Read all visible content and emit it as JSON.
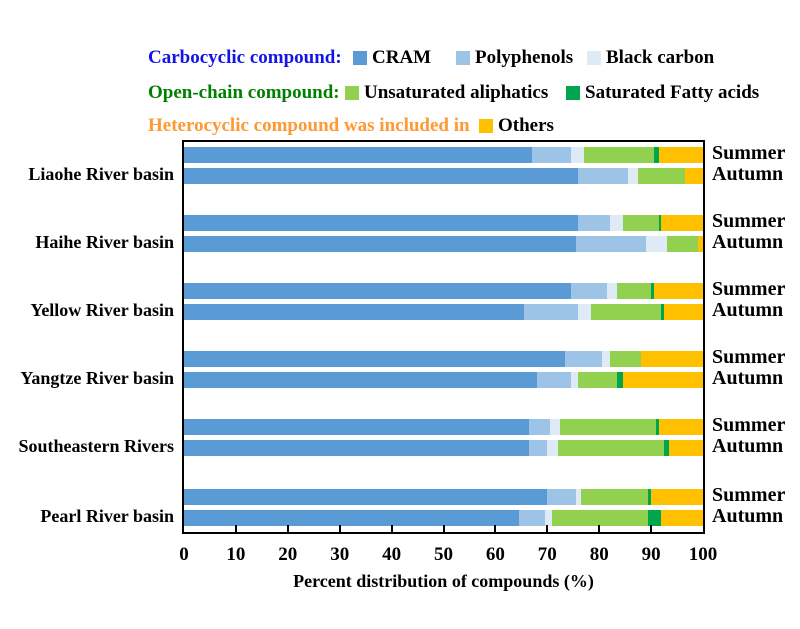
{
  "legend": {
    "rows": [
      {
        "label": "Carbocyclic compound:",
        "color": "#1414E6",
        "items": [
          {
            "name": "CRAM",
            "color": "#5B9BD5"
          },
          {
            "name": "Polyphenols",
            "color": "#9DC3E6"
          },
          {
            "name": "Black carbon",
            "color": "#DEEBF7"
          }
        ]
      },
      {
        "label": "Open-chain compound:",
        "color": "#008000",
        "items": [
          {
            "name": "Unsaturated aliphatics",
            "color": "#92D050"
          },
          {
            "name": "Saturated Fatty acids",
            "color": "#00A550"
          }
        ]
      },
      {
        "label": "Heterocyclic compound was included in",
        "color": "#FF9933",
        "items": [
          {
            "name": "Others",
            "color": "#FFC000"
          }
        ]
      }
    ]
  },
  "chart_data": {
    "type": "bar",
    "orientation": "horizontal",
    "stacked": true,
    "title": "",
    "xlabel": "Percent distribution of compounds (%)",
    "xlim": [
      0,
      100
    ],
    "xticks": [
      0,
      10,
      20,
      30,
      40,
      50,
      60,
      70,
      80,
      90,
      100
    ],
    "grid": false,
    "series_names": [
      "CRAM",
      "Polyphenols",
      "Black carbon",
      "Unsaturated aliphatics",
      "Saturated Fatty acids",
      "Others"
    ],
    "series_colors": [
      "#5B9BD5",
      "#9DC3E6",
      "#DEEBF7",
      "#92D050",
      "#00A550",
      "#FFC000"
    ],
    "groups": [
      {
        "category": "Liaohe River basin",
        "bars": [
          {
            "season": "Summer",
            "values": [
              67,
              7.5,
              2.5,
              13.5,
              1,
              8.5
            ]
          },
          {
            "season": "Autumn",
            "values": [
              76,
              9.5,
              2,
              9,
              0,
              3.5
            ]
          }
        ]
      },
      {
        "category": "Haihe River basin",
        "bars": [
          {
            "season": "Summer",
            "values": [
              76,
              6,
              2.5,
              7,
              0.5,
              8
            ]
          },
          {
            "season": "Autumn",
            "values": [
              75.5,
              13.5,
              4,
              6,
              0,
              1
            ]
          }
        ]
      },
      {
        "category": "Yellow River basin",
        "bars": [
          {
            "season": "Summer",
            "values": [
              74.5,
              7,
              2,
              6.5,
              0.5,
              9.5
            ]
          },
          {
            "season": "Autumn",
            "values": [
              65.5,
              10.5,
              2.5,
              13.5,
              0.5,
              7.5
            ]
          }
        ]
      },
      {
        "category": "Yangtze River basin",
        "bars": [
          {
            "season": "Summer",
            "values": [
              73.5,
              7,
              1.5,
              6,
              0,
              12
            ]
          },
          {
            "season": "Autumn",
            "values": [
              68,
              6.5,
              1.5,
              7.5,
              1,
              15.5
            ]
          }
        ]
      },
      {
        "category": "Southeastern Rivers",
        "bars": [
          {
            "season": "Summer",
            "values": [
              66.5,
              4,
              2,
              18.5,
              0.5,
              8.5
            ]
          },
          {
            "season": "Autumn",
            "values": [
              66.5,
              3.5,
              2,
              20.5,
              1,
              6.5
            ]
          }
        ]
      },
      {
        "category": "Pearl River basin",
        "bars": [
          {
            "season": "Summer",
            "values": [
              70,
              5.5,
              1,
              13,
              0.5,
              10
            ]
          },
          {
            "season": "Autumn",
            "values": [
              64.5,
              5,
              1.5,
              18.5,
              2.5,
              8
            ]
          }
        ]
      }
    ]
  }
}
